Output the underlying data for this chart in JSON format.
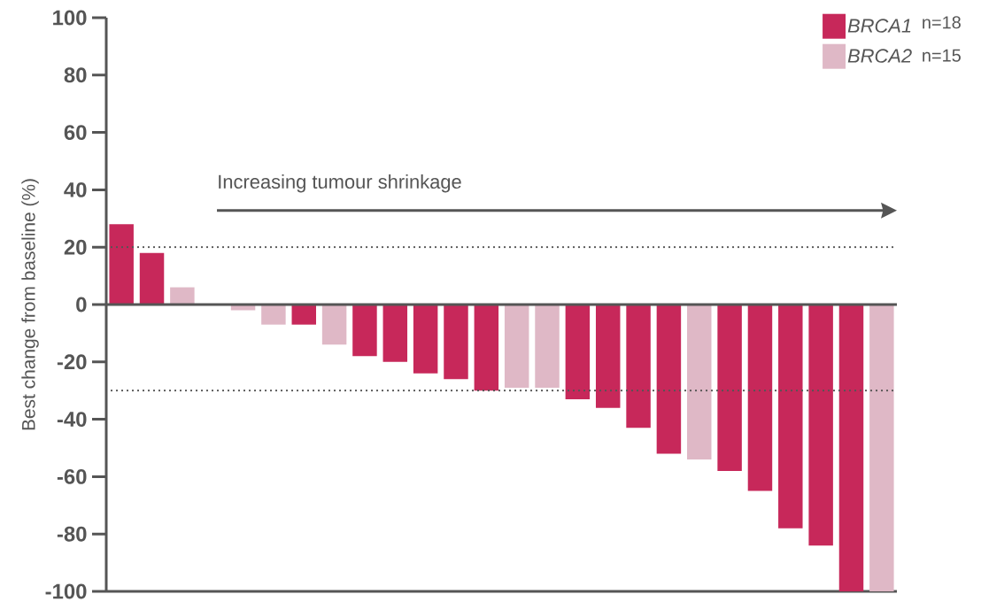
{
  "chart_data": {
    "type": "bar",
    "ylabel": "Best change from baseline (%)",
    "categories": [
      null,
      null,
      null,
      null,
      null,
      null,
      null,
      null,
      null,
      null,
      null,
      null,
      null,
      null,
      null,
      null,
      null,
      null,
      null,
      null,
      null,
      null,
      null,
      null,
      null,
      null
    ],
    "series": [
      {
        "name": "BRCA1",
        "color": "#c7285a",
        "values": [
          28,
          18,
          null,
          null,
          null,
          null,
          -7,
          null,
          -18,
          -20,
          -24,
          -26,
          -30,
          null,
          null,
          -33,
          -36,
          -43,
          -52,
          null,
          -58,
          -65,
          -78,
          -84,
          -100,
          null
        ]
      },
      {
        "name": "BRCA2",
        "color": "#dfb8c6",
        "values": [
          null,
          null,
          6,
          null,
          -2,
          -7,
          null,
          -14,
          null,
          null,
          null,
          null,
          null,
          -29,
          -29,
          null,
          null,
          null,
          null,
          -54,
          null,
          null,
          null,
          null,
          null,
          -100
        ]
      }
    ],
    "ylim": [
      -100,
      100
    ],
    "yticks": [
      -100,
      -80,
      -60,
      -40,
      -20,
      0,
      20,
      40,
      60,
      80,
      100
    ],
    "ref_lines": [
      {
        "axis": "y",
        "value": 20,
        "color": "#555555",
        "line_style": "dotted"
      },
      {
        "axis": "y",
        "value": -30,
        "color": "#555555",
        "line_style": "dotted"
      }
    ],
    "legend": "top right",
    "annotations": [
      "Increasing tumour shrinkage",
      "n=18",
      "n=15"
    ]
  }
}
